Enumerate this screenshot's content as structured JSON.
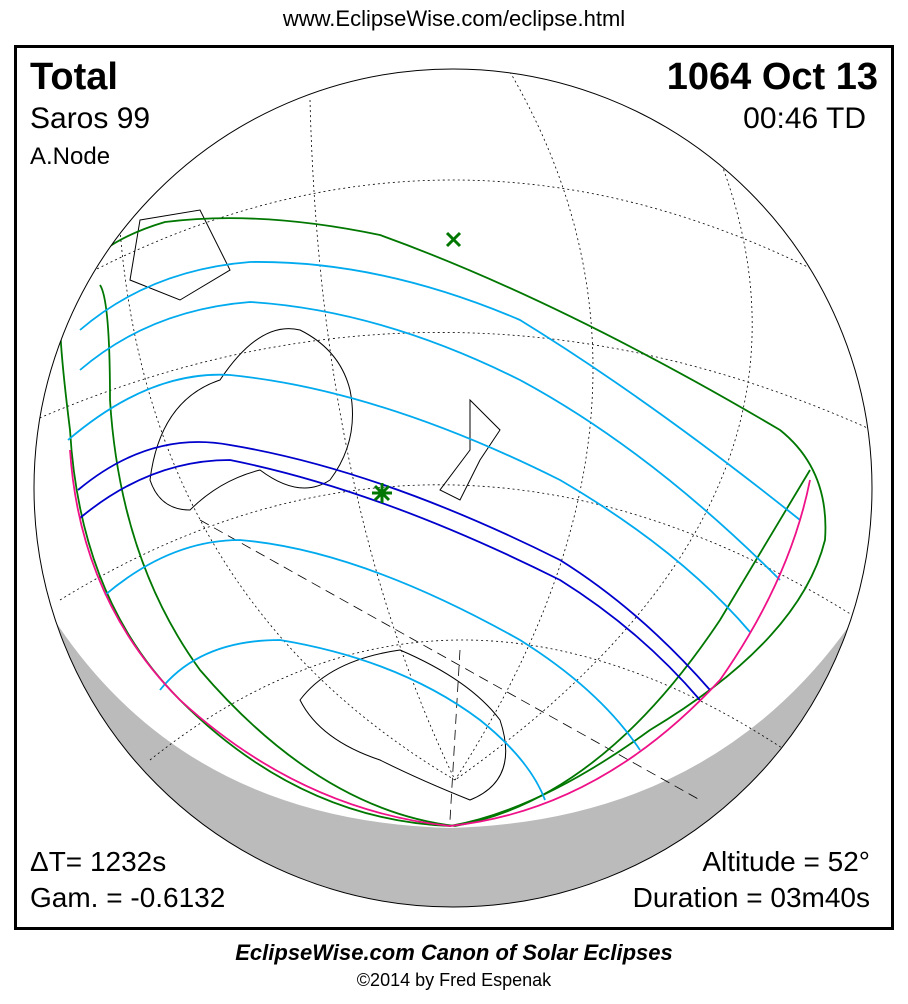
{
  "header": {
    "url": "www.EclipseWise.com/eclipse.html"
  },
  "eclipse": {
    "type": "Total",
    "date": "1064 Oct 13",
    "saros": "Saros  99",
    "time": "00:46 TD",
    "node": "A.Node",
    "delta_t": "ΔT=   1232s",
    "gamma": "Gam. = -0.6132",
    "altitude": "Altitude = 52°",
    "duration": "Duration = 03m40s"
  },
  "footer": {
    "canon": "EclipseWise.com Canon of Solar Eclipses",
    "copyright": "©2014 by Fred Espenak"
  },
  "colors": {
    "penumbra": "#007700",
    "central": "#0000cc",
    "partial_lines": "#00aaee",
    "rise_set": "#ee1188",
    "night": "#bbbbbb"
  }
}
